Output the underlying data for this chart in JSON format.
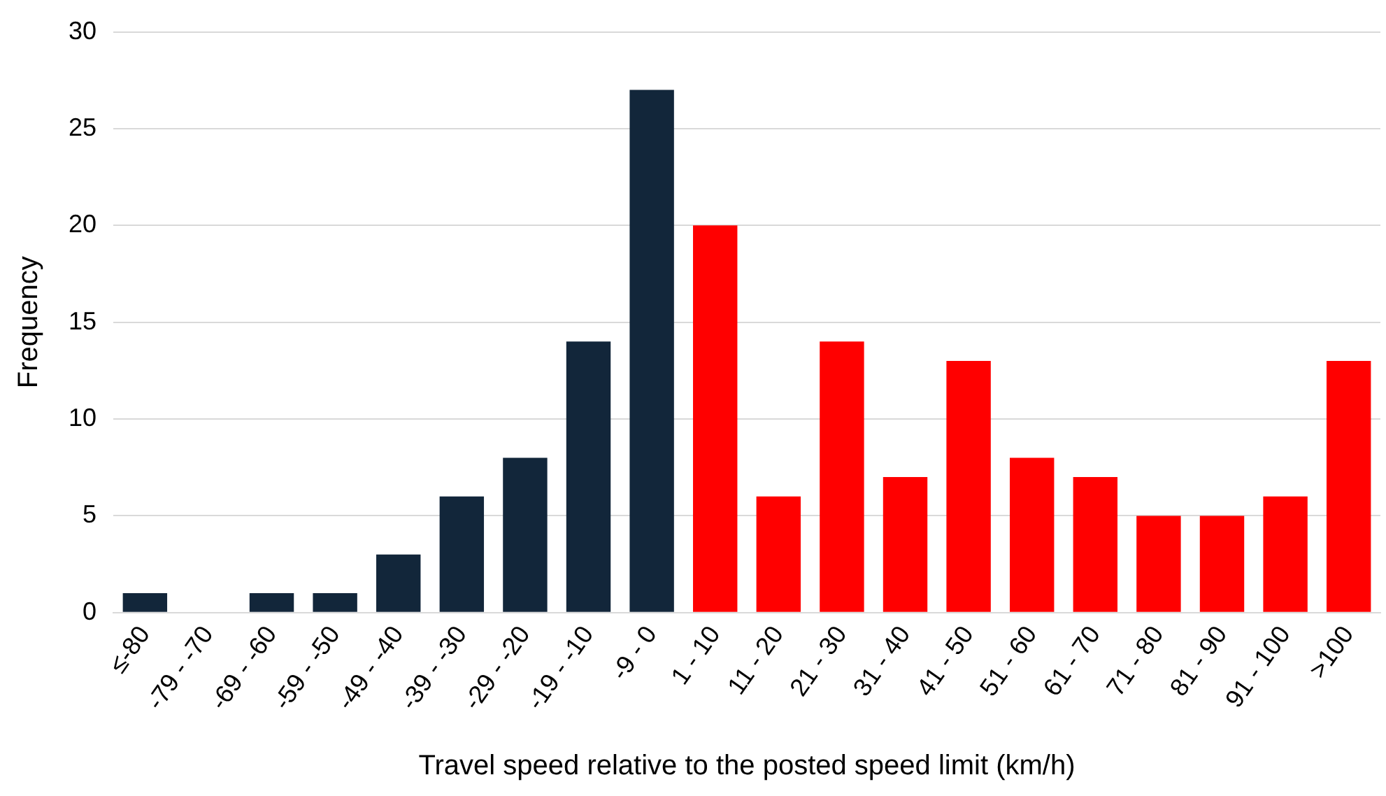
{
  "chart_data": {
    "type": "bar",
    "xlabel": "Travel speed relative to the posted speed limit (km/h)",
    "ylabel": "Frequency",
    "categories": [
      "≤-80",
      "-79 - -70",
      "-69 - -60",
      "-59 - -50",
      "-49 - -40",
      "-39 - -30",
      "-29 - -20",
      "-19 - -10",
      "-9 - 0",
      "1 - 10",
      "11 - 20",
      "21 - 30",
      "31 - 40",
      "41 - 50",
      "51 - 60",
      "61 - 70",
      "71 - 80",
      "81 - 90",
      "91 - 100",
      ">100"
    ],
    "values": [
      1,
      0,
      1,
      1,
      3,
      6,
      8,
      14,
      27,
      20,
      6,
      14,
      7,
      13,
      8,
      7,
      5,
      5,
      6,
      13
    ],
    "colors": [
      "#12263a",
      "#12263a",
      "#12263a",
      "#12263a",
      "#12263a",
      "#12263a",
      "#12263a",
      "#12263a",
      "#12263a",
      "#ff0000",
      "#ff0000",
      "#ff0000",
      "#ff0000",
      "#ff0000",
      "#ff0000",
      "#ff0000",
      "#ff0000",
      "#ff0000",
      "#ff0000",
      "#ff0000"
    ],
    "ylim": [
      0,
      30
    ],
    "yticks": [
      0,
      5,
      10,
      15,
      20,
      25,
      30
    ],
    "grid": "y",
    "legend": false
  }
}
